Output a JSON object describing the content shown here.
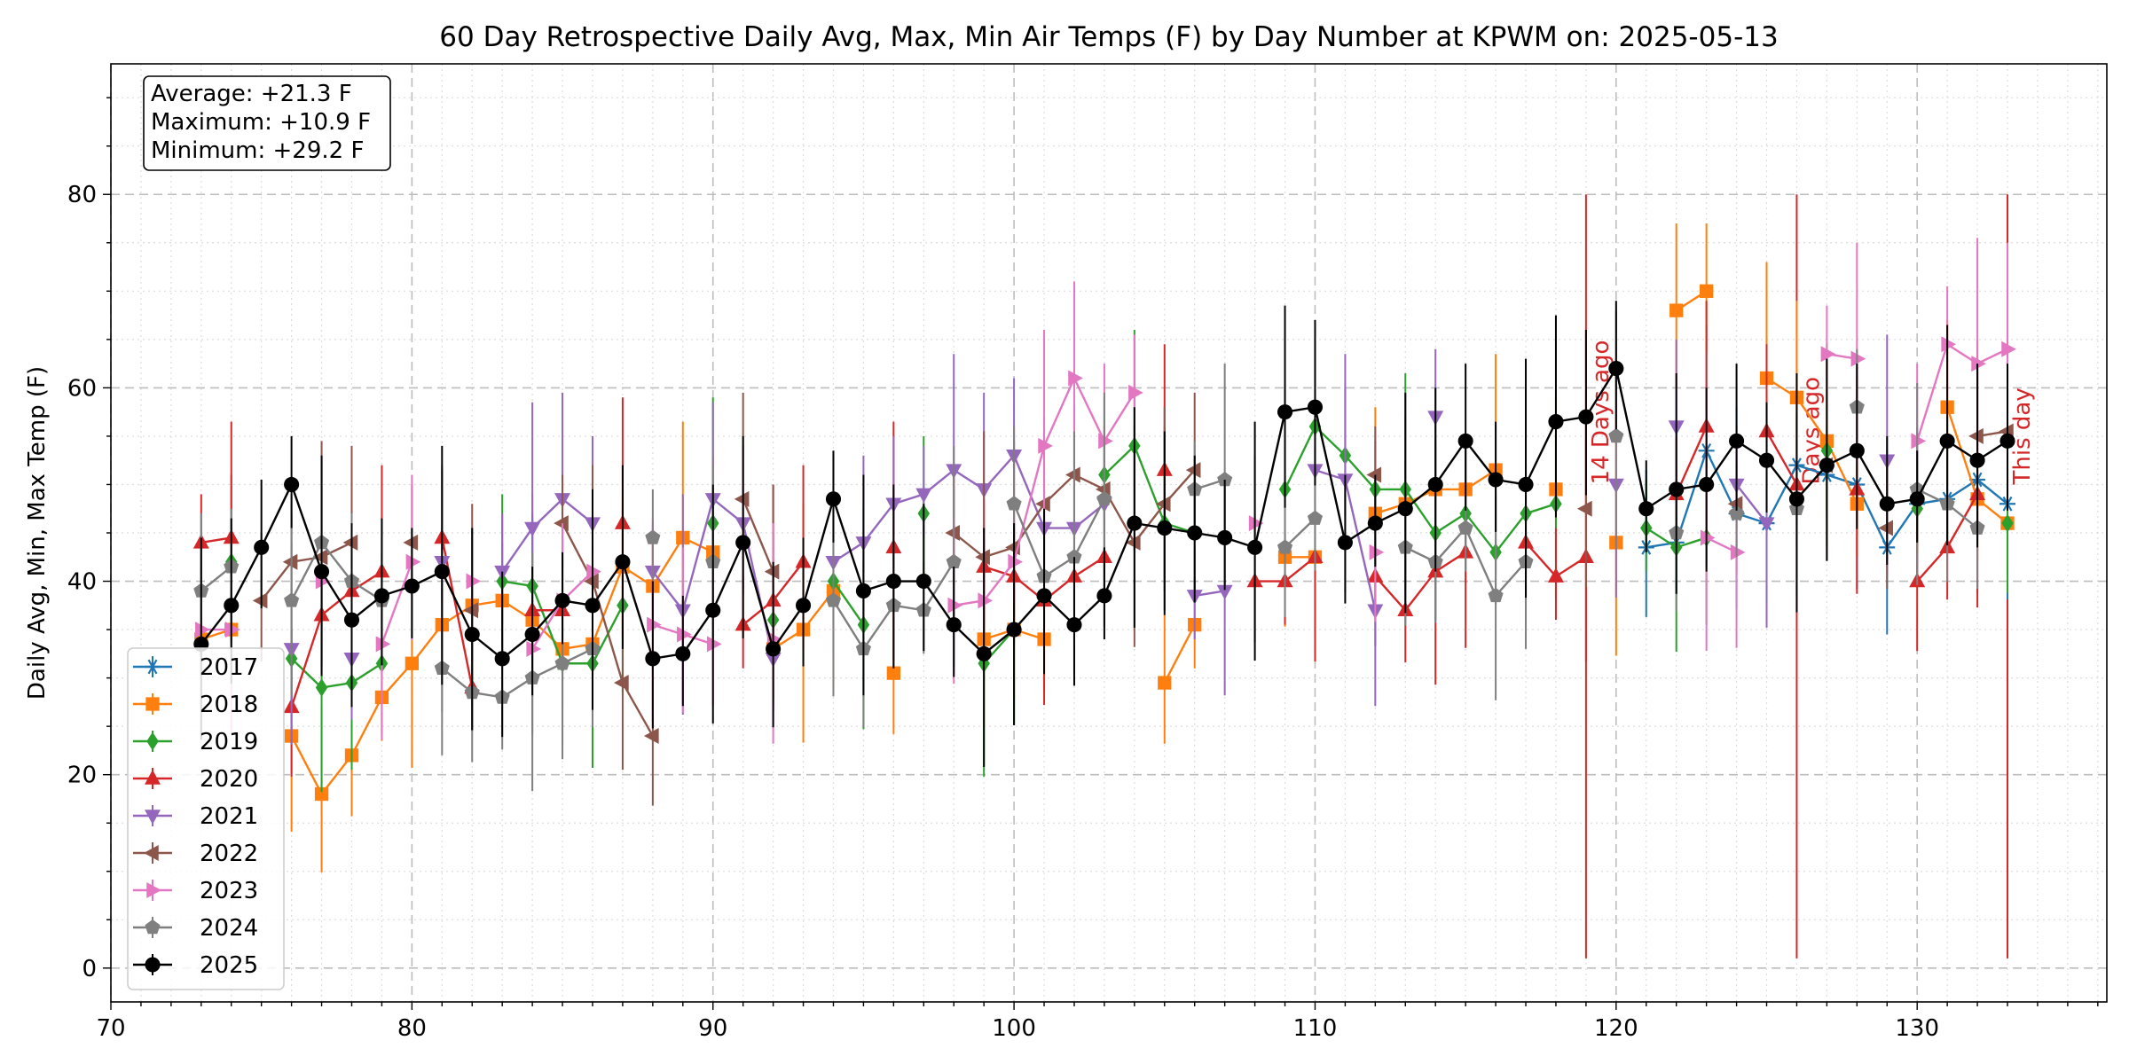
{
  "chart_data": {
    "type": "line",
    "title": "60 Day Retrospective Daily Avg, Max, Min Air Temps (F) by Day Number at KPWM on: 2025-05-13",
    "xlabel": "",
    "ylabel": "Daily Avg, Min, Max Temp (F)",
    "xlim": [
      70,
      136.3
    ],
    "ylim": [
      -3.5,
      93.5
    ],
    "x_ticks": [
      70,
      80,
      90,
      100,
      110,
      120,
      130
    ],
    "y_ticks": [
      0,
      20,
      40,
      60,
      80
    ],
    "grid": true,
    "legend_position": "lower-left",
    "stats_box": [
      "Average: +21.3 F",
      "Maximum: +10.9 F",
      "Minimum: +29.2 F"
    ],
    "annotations": [
      {
        "x": 119.5,
        "label": "14 Days ago",
        "color": "#d62728"
      },
      {
        "x": 126.5,
        "label": "Days ago",
        "color": "#d62728"
      },
      {
        "x": 133.5,
        "label": "This day",
        "color": "#d62728"
      }
    ],
    "vertical_lines": [
      {
        "x": 119,
        "ymin": 1,
        "ymax": 80
      },
      {
        "x": 126,
        "ymin": 1,
        "ymax": 80
      },
      {
        "x": 133,
        "ymin": 1,
        "ymax": 80
      }
    ],
    "x": [
      73,
      74,
      75,
      76,
      77,
      78,
      79,
      80,
      81,
      82,
      83,
      84,
      85,
      86,
      87,
      88,
      89,
      90,
      91,
      92,
      93,
      94,
      95,
      96,
      97,
      98,
      99,
      100,
      101,
      102,
      103,
      104,
      105,
      106,
      107,
      108,
      109,
      110,
      111,
      112,
      113,
      114,
      115,
      116,
      117,
      118,
      119,
      120,
      121,
      122,
      123,
      124,
      125,
      126,
      127,
      128,
      129,
      130,
      131,
      132,
      133
    ],
    "series": [
      {
        "name": "2017",
        "color": "#1f77b4",
        "marker": "star",
        "values": [
          null,
          null,
          null,
          null,
          null,
          null,
          null,
          null,
          null,
          null,
          null,
          null,
          null,
          null,
          null,
          null,
          null,
          null,
          null,
          null,
          null,
          null,
          null,
          null,
          null,
          null,
          null,
          null,
          null,
          null,
          null,
          null,
          null,
          null,
          null,
          null,
          null,
          null,
          null,
          null,
          null,
          null,
          null,
          null,
          null,
          null,
          null,
          null,
          43.5,
          44,
          53.5,
          47,
          46,
          52,
          51,
          50,
          43.5,
          48,
          48.5,
          50.5,
          48
        ]
      },
      {
        "name": "2018",
        "color": "#ff7f0e",
        "marker": "square",
        "values": [
          34,
          35,
          null,
          24,
          18,
          22,
          28,
          31.5,
          35.5,
          37.5,
          38,
          36,
          33,
          33.5,
          41.5,
          39.5,
          44.5,
          43,
          null,
          33,
          35,
          39,
          null,
          30.5,
          null,
          null,
          34,
          35,
          34,
          null,
          null,
          null,
          29.5,
          35.5,
          null,
          null,
          42.5,
          42.5,
          null,
          47,
          48,
          49.5,
          49.5,
          51.5,
          null,
          49.5,
          null,
          44,
          null,
          68,
          70,
          null,
          61,
          59,
          54.5,
          48,
          null,
          null,
          58,
          48.5,
          46
        ]
      },
      {
        "name": "2019",
        "color": "#2ca02c",
        "marker": "diamond",
        "values": [
          null,
          42,
          null,
          32,
          29,
          29.5,
          31.5,
          null,
          null,
          null,
          40,
          39.5,
          31.5,
          31.5,
          37.5,
          null,
          null,
          46,
          null,
          36,
          null,
          40,
          35.5,
          null,
          47,
          null,
          31.5,
          35,
          null,
          null,
          51,
          54,
          46,
          45,
          null,
          null,
          49.5,
          56,
          53,
          49.5,
          49.5,
          45,
          47,
          43,
          47,
          48,
          null,
          null,
          45.5,
          43.5,
          44.5,
          null,
          null,
          null,
          53.5,
          null,
          null,
          47.5,
          null,
          null,
          46
        ]
      },
      {
        "name": "2020",
        "color": "#d62728",
        "marker": "triangle-up",
        "values": [
          44,
          44.5,
          null,
          27,
          36.5,
          39,
          41,
          null,
          44.5,
          29,
          null,
          37,
          37,
          null,
          46,
          null,
          null,
          null,
          35.5,
          38,
          42,
          null,
          null,
          43.5,
          null,
          null,
          41.5,
          40.5,
          38,
          40.5,
          42.5,
          null,
          51.5,
          null,
          null,
          40,
          40,
          42.5,
          null,
          40.5,
          37,
          41,
          43,
          null,
          44,
          40.5,
          42.5,
          null,
          null,
          49,
          56,
          null,
          55.5,
          50,
          null,
          49.5,
          null,
          40,
          43.5,
          49,
          null
        ]
      },
      {
        "name": "2021",
        "color": "#9467bd",
        "marker": "triangle-down",
        "values": [
          null,
          null,
          null,
          33,
          null,
          32,
          null,
          null,
          42,
          null,
          41,
          45.5,
          48.5,
          46,
          null,
          41,
          37,
          48.5,
          46,
          32,
          null,
          42,
          44,
          48,
          49,
          51.5,
          49.5,
          53,
          45.5,
          45.5,
          48,
          null,
          null,
          38.5,
          39,
          null,
          null,
          51.5,
          50.5,
          37,
          null,
          57,
          null,
          null,
          null,
          null,
          null,
          50,
          null,
          56,
          null,
          50,
          46,
          null,
          null,
          null,
          52.5,
          null,
          null,
          null,
          null
        ]
      },
      {
        "name": "2022",
        "color": "#8c564b",
        "marker": "triangle-left",
        "values": [
          null,
          null,
          38,
          42,
          42.5,
          44,
          null,
          44,
          null,
          37,
          null,
          null,
          46,
          40,
          29.5,
          24,
          null,
          null,
          48.5,
          41,
          null,
          null,
          null,
          null,
          null,
          45,
          42.5,
          43.5,
          48,
          51,
          49.5,
          44,
          48,
          51.5,
          null,
          null,
          null,
          null,
          null,
          51,
          null,
          null,
          null,
          null,
          null,
          null,
          47.5,
          null,
          null,
          null,
          null,
          48,
          null,
          null,
          52,
          null,
          45.5,
          null,
          null,
          55,
          55.5
        ]
      },
      {
        "name": "2023",
        "color": "#e377c2",
        "marker": "triangle-right",
        "values": [
          35,
          35,
          null,
          null,
          40,
          null,
          33.5,
          42,
          null,
          40,
          null,
          33,
          38,
          41,
          null,
          35.5,
          34.5,
          33.5,
          null,
          34,
          null,
          null,
          null,
          null,
          null,
          37.5,
          38,
          42,
          54,
          61,
          54.5,
          59.5,
          null,
          null,
          null,
          46,
          null,
          null,
          null,
          43,
          null,
          null,
          null,
          null,
          null,
          null,
          null,
          null,
          null,
          null,
          44.5,
          43,
          null,
          null,
          63.5,
          63,
          null,
          54.5,
          64.5,
          62.5,
          64
        ]
      },
      {
        "name": "2024",
        "color": "#7f7f7f",
        "marker": "pentagon",
        "values": [
          39,
          41.5,
          null,
          38,
          44,
          40,
          38,
          null,
          31,
          28.5,
          28,
          30,
          31.5,
          33,
          null,
          44.5,
          null,
          42,
          null,
          null,
          null,
          38,
          33,
          37.5,
          37,
          42,
          null,
          48,
          40.5,
          42.5,
          48.5,
          null,
          null,
          49.5,
          50.5,
          null,
          43.5,
          46.5,
          null,
          null,
          43.5,
          42,
          45.5,
          38.5,
          42,
          null,
          null,
          55,
          null,
          45,
          null,
          47,
          null,
          47.5,
          null,
          58,
          null,
          49.5,
          48,
          45.5,
          null
        ]
      },
      {
        "name": "2025",
        "color": "#000000",
        "marker": "circle",
        "values": [
          33.5,
          37.5,
          43.5,
          50,
          41,
          36,
          38.5,
          39.5,
          41,
          34.5,
          32,
          34.5,
          38,
          37.5,
          42,
          32,
          32.5,
          37,
          44,
          33,
          37.5,
          48.5,
          39,
          40,
          40,
          35.5,
          32.5,
          35,
          38.5,
          35.5,
          38.5,
          46,
          45.5,
          45,
          44.5,
          43.5,
          57.5,
          58,
          44,
          46,
          47.5,
          50,
          54.5,
          50.5,
          50,
          56.5,
          57,
          62,
          47.5,
          49.5,
          50,
          54.5,
          52.5,
          48.5,
          52,
          53.5,
          48,
          48.5,
          54.5,
          52.5,
          54.5
        ]
      }
    ]
  }
}
